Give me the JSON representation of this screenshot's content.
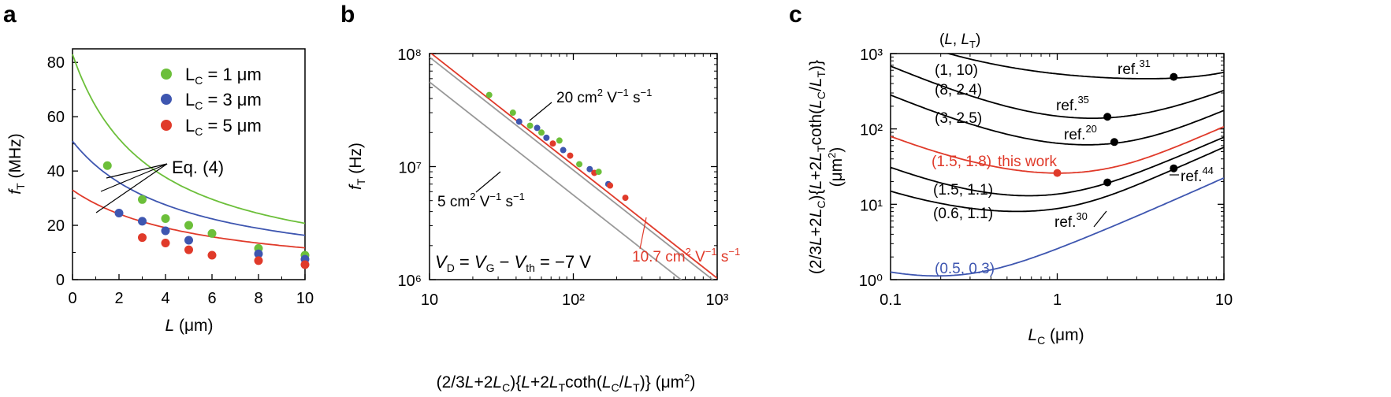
{
  "chart_data": [
    {
      "panel": "a",
      "type": "scatter",
      "xlabel": "L (μm)",
      "ylabel": "fT (MHz)",
      "xlim": [
        0,
        10
      ],
      "ylim": [
        0,
        85
      ],
      "xticks": [
        "0",
        "2",
        "4",
        "6",
        "8",
        "10"
      ],
      "yticks": [
        "0",
        "20",
        "40",
        "60",
        "80"
      ],
      "annotation": "Eq. (4)",
      "series": [
        {
          "name": "LC = 1 μm",
          "color": "#6cbf3a",
          "x": [
            1.5,
            3,
            4,
            5,
            6,
            8,
            10
          ],
          "y": [
            42,
            29.5,
            22.5,
            20,
            17,
            11.5,
            9
          ],
          "fit": {
            "a": 83,
            "b": 3.33
          }
        },
        {
          "name": "LC = 3 μm",
          "color": "#3e56b0",
          "x": [
            2,
            3,
            4,
            5,
            8,
            10
          ],
          "y": [
            24.5,
            21.5,
            18,
            14.5,
            9.5,
            7.5
          ],
          "fit": {
            "a": 51,
            "b": 4.7
          }
        },
        {
          "name": "LC = 5 μm",
          "color": "#e03a2a",
          "x": [
            3,
            4,
            5,
            6,
            8,
            10
          ],
          "y": [
            15.5,
            13.5,
            11,
            9,
            7,
            5.5
          ],
          "fit": {
            "a": 33,
            "b": 5.5
          }
        }
      ]
    },
    {
      "panel": "b",
      "type": "scatter",
      "xlabel": "(2/3L+2LC){L+2LTcoth(LC/LT)} (μm²)",
      "ylabel": "fT (Hz)",
      "xlim": [
        10,
        1000
      ],
      "ylim": [
        1000000,
        100000000
      ],
      "xticks": [
        "10",
        "10²",
        "10³"
      ],
      "yticks": [
        "10⁶",
        "10⁷",
        "10⁸"
      ],
      "condition": "VD = VG − Vth = −7 V",
      "lines": [
        {
          "label": "20 cm² V⁻¹ s⁻¹",
          "color": "#999999",
          "k": 930000000
        },
        {
          "label": "10.7 cm² V⁻¹ s⁻¹",
          "color": "#e03a2a",
          "k": 1030000000
        },
        {
          "label": "5 cm² V⁻¹ s⁻¹",
          "color": "#999999",
          "k": 560000000
        }
      ],
      "points": [
        {
          "x": 26,
          "y": 43000000,
          "color": "#6cbf3a"
        },
        {
          "x": 38,
          "y": 30000000,
          "color": "#6cbf3a"
        },
        {
          "x": 42,
          "y": 25000000,
          "color": "#3e56b0"
        },
        {
          "x": 50,
          "y": 23000000,
          "color": "#6cbf3a"
        },
        {
          "x": 56,
          "y": 22000000,
          "color": "#3e56b0"
        },
        {
          "x": 60,
          "y": 20000000,
          "color": "#6cbf3a"
        },
        {
          "x": 65,
          "y": 18000000,
          "color": "#3e56b0"
        },
        {
          "x": 72,
          "y": 16000000,
          "color": "#e03a2a"
        },
        {
          "x": 80,
          "y": 17000000,
          "color": "#6cbf3a"
        },
        {
          "x": 85,
          "y": 14000000,
          "color": "#3e56b0"
        },
        {
          "x": 95,
          "y": 12500000,
          "color": "#e03a2a"
        },
        {
          "x": 110,
          "y": 10500000,
          "color": "#6cbf3a"
        },
        {
          "x": 130,
          "y": 9500000,
          "color": "#3e56b0"
        },
        {
          "x": 140,
          "y": 8800000,
          "color": "#e03a2a"
        },
        {
          "x": 150,
          "y": 9000000,
          "color": "#6cbf3a"
        },
        {
          "x": 175,
          "y": 7000000,
          "color": "#3e56b0"
        },
        {
          "x": 180,
          "y": 6800000,
          "color": "#e03a2a"
        },
        {
          "x": 230,
          "y": 5300000,
          "color": "#e03a2a"
        }
      ]
    },
    {
      "panel": "c",
      "type": "line",
      "xlabel": "LC (μm)",
      "ylabel": "(2/3L+2LC){L+2LTcoth(LC/LT)} (μm²)",
      "xlim": [
        0.1,
        10
      ],
      "ylim": [
        1,
        1000
      ],
      "xticks": [
        "0.1",
        "1",
        "10"
      ],
      "yticks": [
        "10⁰",
        "10¹",
        "10²",
        "10³"
      ],
      "legend_title": "(L, LT)",
      "curves": [
        {
          "label": "(1, 10)",
          "L": 1,
          "LT": 10,
          "color": "#000000"
        },
        {
          "label": "(8, 2.4)",
          "L": 8,
          "LT": 2.4,
          "color": "#000000"
        },
        {
          "label": "(3, 2.5)",
          "L": 3,
          "LT": 2.5,
          "color": "#000000"
        },
        {
          "label": "(1.5, 1.8)",
          "L": 1.5,
          "LT": 1.8,
          "color": "#e03a2a"
        },
        {
          "label": "(1.5, 1.1)",
          "L": 1.5,
          "LT": 1.1,
          "color": "#000000"
        },
        {
          "label": "(0.6, 1.1)",
          "L": 0.6,
          "LT": 1.1,
          "color": "#000000"
        },
        {
          "label": "(0.5, 0.3)",
          "L": 0.5,
          "LT": 0.3,
          "color": "#3e56b0"
        }
      ],
      "refs": [
        {
          "label": "ref.",
          "sup": "31",
          "x": 5,
          "y": 490
        },
        {
          "label": "ref.",
          "sup": "35",
          "x": 2,
          "y": 145
        },
        {
          "label": "ref.",
          "sup": "20",
          "x": 2.2,
          "y": 67
        },
        {
          "label": "this work",
          "sup": "",
          "x": 1,
          "y": 26
        },
        {
          "label": "ref.",
          "sup": "44",
          "x": 5,
          "y": 30
        },
        {
          "label": "ref.",
          "sup": "30",
          "x": 2,
          "y": 19.5
        }
      ]
    }
  ]
}
